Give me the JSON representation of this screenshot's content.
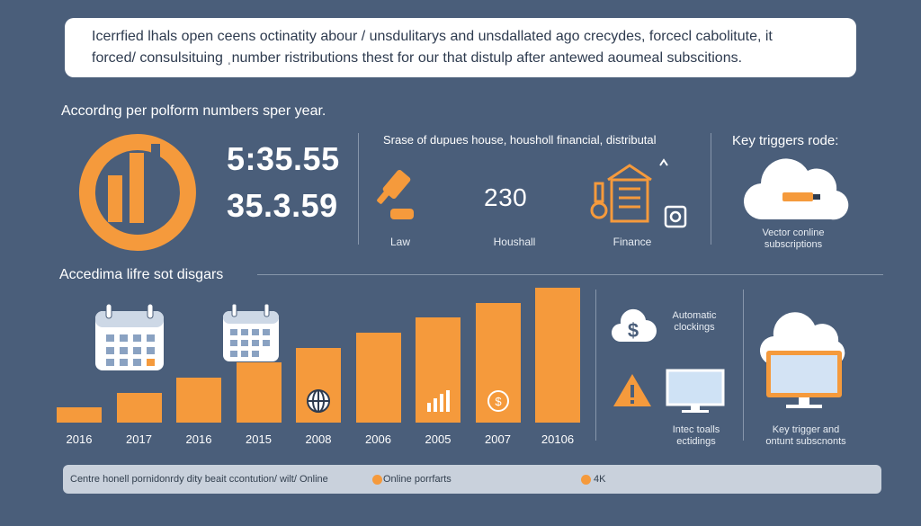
{
  "intro": {
    "line1": "Icerrfied lhals open ceens octinatity abour / unsdulitarys and unsdallated ago crecydes, forcecl cabolitute, it",
    "line2": "forced/ consulsituing ˌnumber ristributions thest for our that distulp after antewed aoumeal subscitions."
  },
  "top": {
    "heading": "Accordng per polform numbers sper year.",
    "number1": "5:35.55",
    "number2": "35.3.59",
    "middle_heading": "Srase of dupues house, housholl financial, distributal",
    "law_label": "Law",
    "household_number": "230",
    "household_label": "Houshall",
    "finance_label": "Finance",
    "right_heading": "Key triggers rode:",
    "right_caption_line1": "Vector conline",
    "right_caption_line2": "subscriptions"
  },
  "bottom": {
    "heading": "Accedima lifre sot disgars",
    "auto_label_line1": "Automatic",
    "auto_label_line2": "clockings",
    "alert_label_line1": "Intec toalls",
    "alert_label_line2": "ectidings",
    "key_label_line1": "Key trigger and",
    "key_label_line2": "ontunt subscnonts"
  },
  "chart_data": {
    "type": "bar",
    "categories": [
      "2016",
      "2017",
      "2016",
      "2015",
      "2008",
      "2006",
      "2005",
      "2007",
      "20106"
    ],
    "values": [
      1,
      2,
      3,
      4,
      5,
      6,
      7,
      8,
      9
    ]
  },
  "footer": {
    "text": "Centre honell pornidonrdy dity beait ccontution/ wilt/ Online",
    "legend1": "Online porrfarts",
    "legend2": "4K"
  },
  "colors": {
    "background": "#4a5e7a",
    "accent": "#f59a3c",
    "panel": "#ffffff",
    "footer": "#c9d1dc"
  },
  "icons": [
    "pie-chart-icon",
    "gavel-icon",
    "house-finance-icon",
    "cloud-icon",
    "calendar-icon",
    "dollar-hand-icon",
    "warning-icon",
    "monitor-icon",
    "cloud-monitor-icon"
  ]
}
